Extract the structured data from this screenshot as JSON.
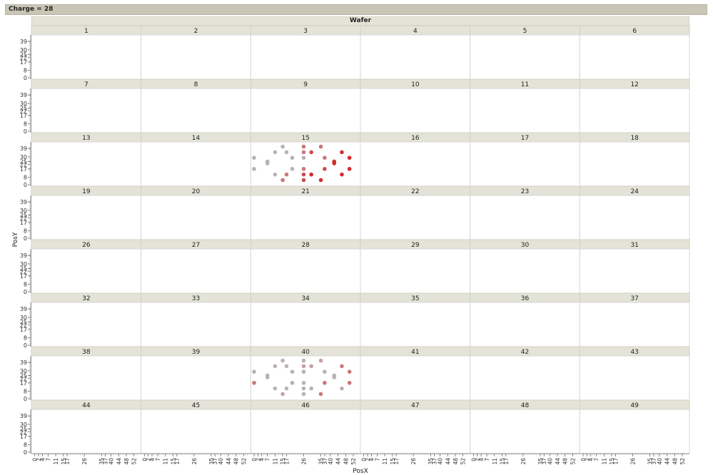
{
  "header": {
    "filter_label": "Charge = 28"
  },
  "chart_data": {
    "type": "scatter",
    "title": "Wafer",
    "xlabel": "PosX",
    "ylabel": "PosY",
    "grid": false,
    "panel_rows": 8,
    "panel_cols": 6,
    "panel_labels": [
      "1",
      "2",
      "3",
      "4",
      "5",
      "6",
      "7",
      "8",
      "9",
      "10",
      "11",
      "12",
      "13",
      "14",
      "15",
      "16",
      "17",
      "18",
      "19",
      "20",
      "21",
      "22",
      "23",
      "24",
      "26",
      "27",
      "28",
      "29",
      "30",
      "31",
      "32",
      "33",
      "34",
      "35",
      "36",
      "37",
      "38",
      "39",
      "40",
      "41",
      "42",
      "43",
      "44",
      "45",
      "46",
      "47",
      "48",
      "49"
    ],
    "y_ticks": [
      "0",
      "8",
      "17",
      "22",
      "25",
      "30",
      "39"
    ],
    "y_tick_values": [
      0,
      8,
      17,
      22,
      25,
      30,
      39
    ],
    "ylim": [
      0,
      43
    ],
    "x_ticks": [
      "0",
      "2",
      "4",
      "7",
      "11",
      "15",
      "17",
      "26",
      "35",
      "37",
      "40",
      "44",
      "48",
      "52"
    ],
    "x_tick_values": [
      0,
      2,
      4,
      7,
      11,
      15,
      17,
      26,
      35,
      37,
      40,
      44,
      48,
      52
    ],
    "xlim": [
      -1,
      55
    ],
    "panels": [
      {
        "label": "15",
        "points": [
          {
            "x": 15,
            "y": 41,
            "color": "#b9b1b3"
          },
          {
            "x": 26,
            "y": 41,
            "color": "#c8787c"
          },
          {
            "x": 35,
            "y": 41,
            "color": "#c8787c"
          },
          {
            "x": 11,
            "y": 35,
            "color": "#b9b1b3"
          },
          {
            "x": 17,
            "y": 35,
            "color": "#b9b1b3"
          },
          {
            "x": 26,
            "y": 35,
            "color": "#c8787c"
          },
          {
            "x": 30,
            "y": 35,
            "color": "#d04a4e"
          },
          {
            "x": 46,
            "y": 35,
            "color": "#d22b2f"
          },
          {
            "x": 0,
            "y": 29,
            "color": "#b9b1b3"
          },
          {
            "x": 20,
            "y": 29,
            "color": "#b9b1b3"
          },
          {
            "x": 26,
            "y": 29,
            "color": "#b9b1b3"
          },
          {
            "x": 37,
            "y": 29,
            "color": "#c8787c"
          },
          {
            "x": 50,
            "y": 29,
            "color": "#d22b2f"
          },
          {
            "x": 7,
            "y": 25,
            "color": "#b9b1b3"
          },
          {
            "x": 7,
            "y": 23,
            "color": "#b9b1b3"
          },
          {
            "x": 42,
            "y": 25,
            "color": "#d22b2f"
          },
          {
            "x": 42,
            "y": 23,
            "color": "#d22b2f"
          },
          {
            "x": 0,
            "y": 17,
            "color": "#b9b1b3"
          },
          {
            "x": 20,
            "y": 17,
            "color": "#b9b1b3"
          },
          {
            "x": 26,
            "y": 17,
            "color": "#c8787c"
          },
          {
            "x": 37,
            "y": 17,
            "color": "#d04a4e"
          },
          {
            "x": 50,
            "y": 17,
            "color": "#d22b2f"
          },
          {
            "x": 11,
            "y": 11,
            "color": "#b9b1b3"
          },
          {
            "x": 17,
            "y": 11,
            "color": "#c8787c"
          },
          {
            "x": 26,
            "y": 11,
            "color": "#d04a4e"
          },
          {
            "x": 30,
            "y": 11,
            "color": "#d22b2f"
          },
          {
            "x": 46,
            "y": 11,
            "color": "#d22b2f"
          },
          {
            "x": 15,
            "y": 5,
            "color": "#c8787c"
          },
          {
            "x": 26,
            "y": 5,
            "color": "#d04a4e"
          },
          {
            "x": 35,
            "y": 5,
            "color": "#d22b2f"
          }
        ]
      },
      {
        "label": "40",
        "points": [
          {
            "x": 15,
            "y": 41,
            "color": "#b9b1b3"
          },
          {
            "x": 26,
            "y": 41,
            "color": "#b9b1b3"
          },
          {
            "x": 35,
            "y": 41,
            "color": "#c8a0a3"
          },
          {
            "x": 11,
            "y": 35,
            "color": "#b9b1b3"
          },
          {
            "x": 17,
            "y": 35,
            "color": "#b9b1b3"
          },
          {
            "x": 26,
            "y": 35,
            "color": "#c8a0a3"
          },
          {
            "x": 30,
            "y": 35,
            "color": "#c8a0a3"
          },
          {
            "x": 46,
            "y": 35,
            "color": "#c8787c"
          },
          {
            "x": 0,
            "y": 29,
            "color": "#b9b1b3"
          },
          {
            "x": 20,
            "y": 29,
            "color": "#b9b1b3"
          },
          {
            "x": 26,
            "y": 29,
            "color": "#b9b1b3"
          },
          {
            "x": 37,
            "y": 29,
            "color": "#b9b1b3"
          },
          {
            "x": 50,
            "y": 29,
            "color": "#c8787c"
          },
          {
            "x": 7,
            "y": 25,
            "color": "#b9b1b3"
          },
          {
            "x": 7,
            "y": 23,
            "color": "#b9b1b3"
          },
          {
            "x": 42,
            "y": 25,
            "color": "#b9b1b3"
          },
          {
            "x": 42,
            "y": 23,
            "color": "#b9b1b3"
          },
          {
            "x": 0,
            "y": 17,
            "color": "#c8787c"
          },
          {
            "x": 20,
            "y": 17,
            "color": "#b9b1b3"
          },
          {
            "x": 26,
            "y": 17,
            "color": "#b9b1b3"
          },
          {
            "x": 37,
            "y": 17,
            "color": "#c8787c"
          },
          {
            "x": 50,
            "y": 17,
            "color": "#c8787c"
          },
          {
            "x": 11,
            "y": 11,
            "color": "#b9b1b3"
          },
          {
            "x": 17,
            "y": 11,
            "color": "#b9b1b3"
          },
          {
            "x": 26,
            "y": 11,
            "color": "#b9b1b3"
          },
          {
            "x": 30,
            "y": 11,
            "color": "#b9b1b3"
          },
          {
            "x": 46,
            "y": 11,
            "color": "#b9b1b3"
          },
          {
            "x": 15,
            "y": 5,
            "color": "#c8a0a3"
          },
          {
            "x": 26,
            "y": 5,
            "color": "#b9b1b3"
          },
          {
            "x": 35,
            "y": 5,
            "color": "#c8787c"
          }
        ]
      }
    ]
  }
}
